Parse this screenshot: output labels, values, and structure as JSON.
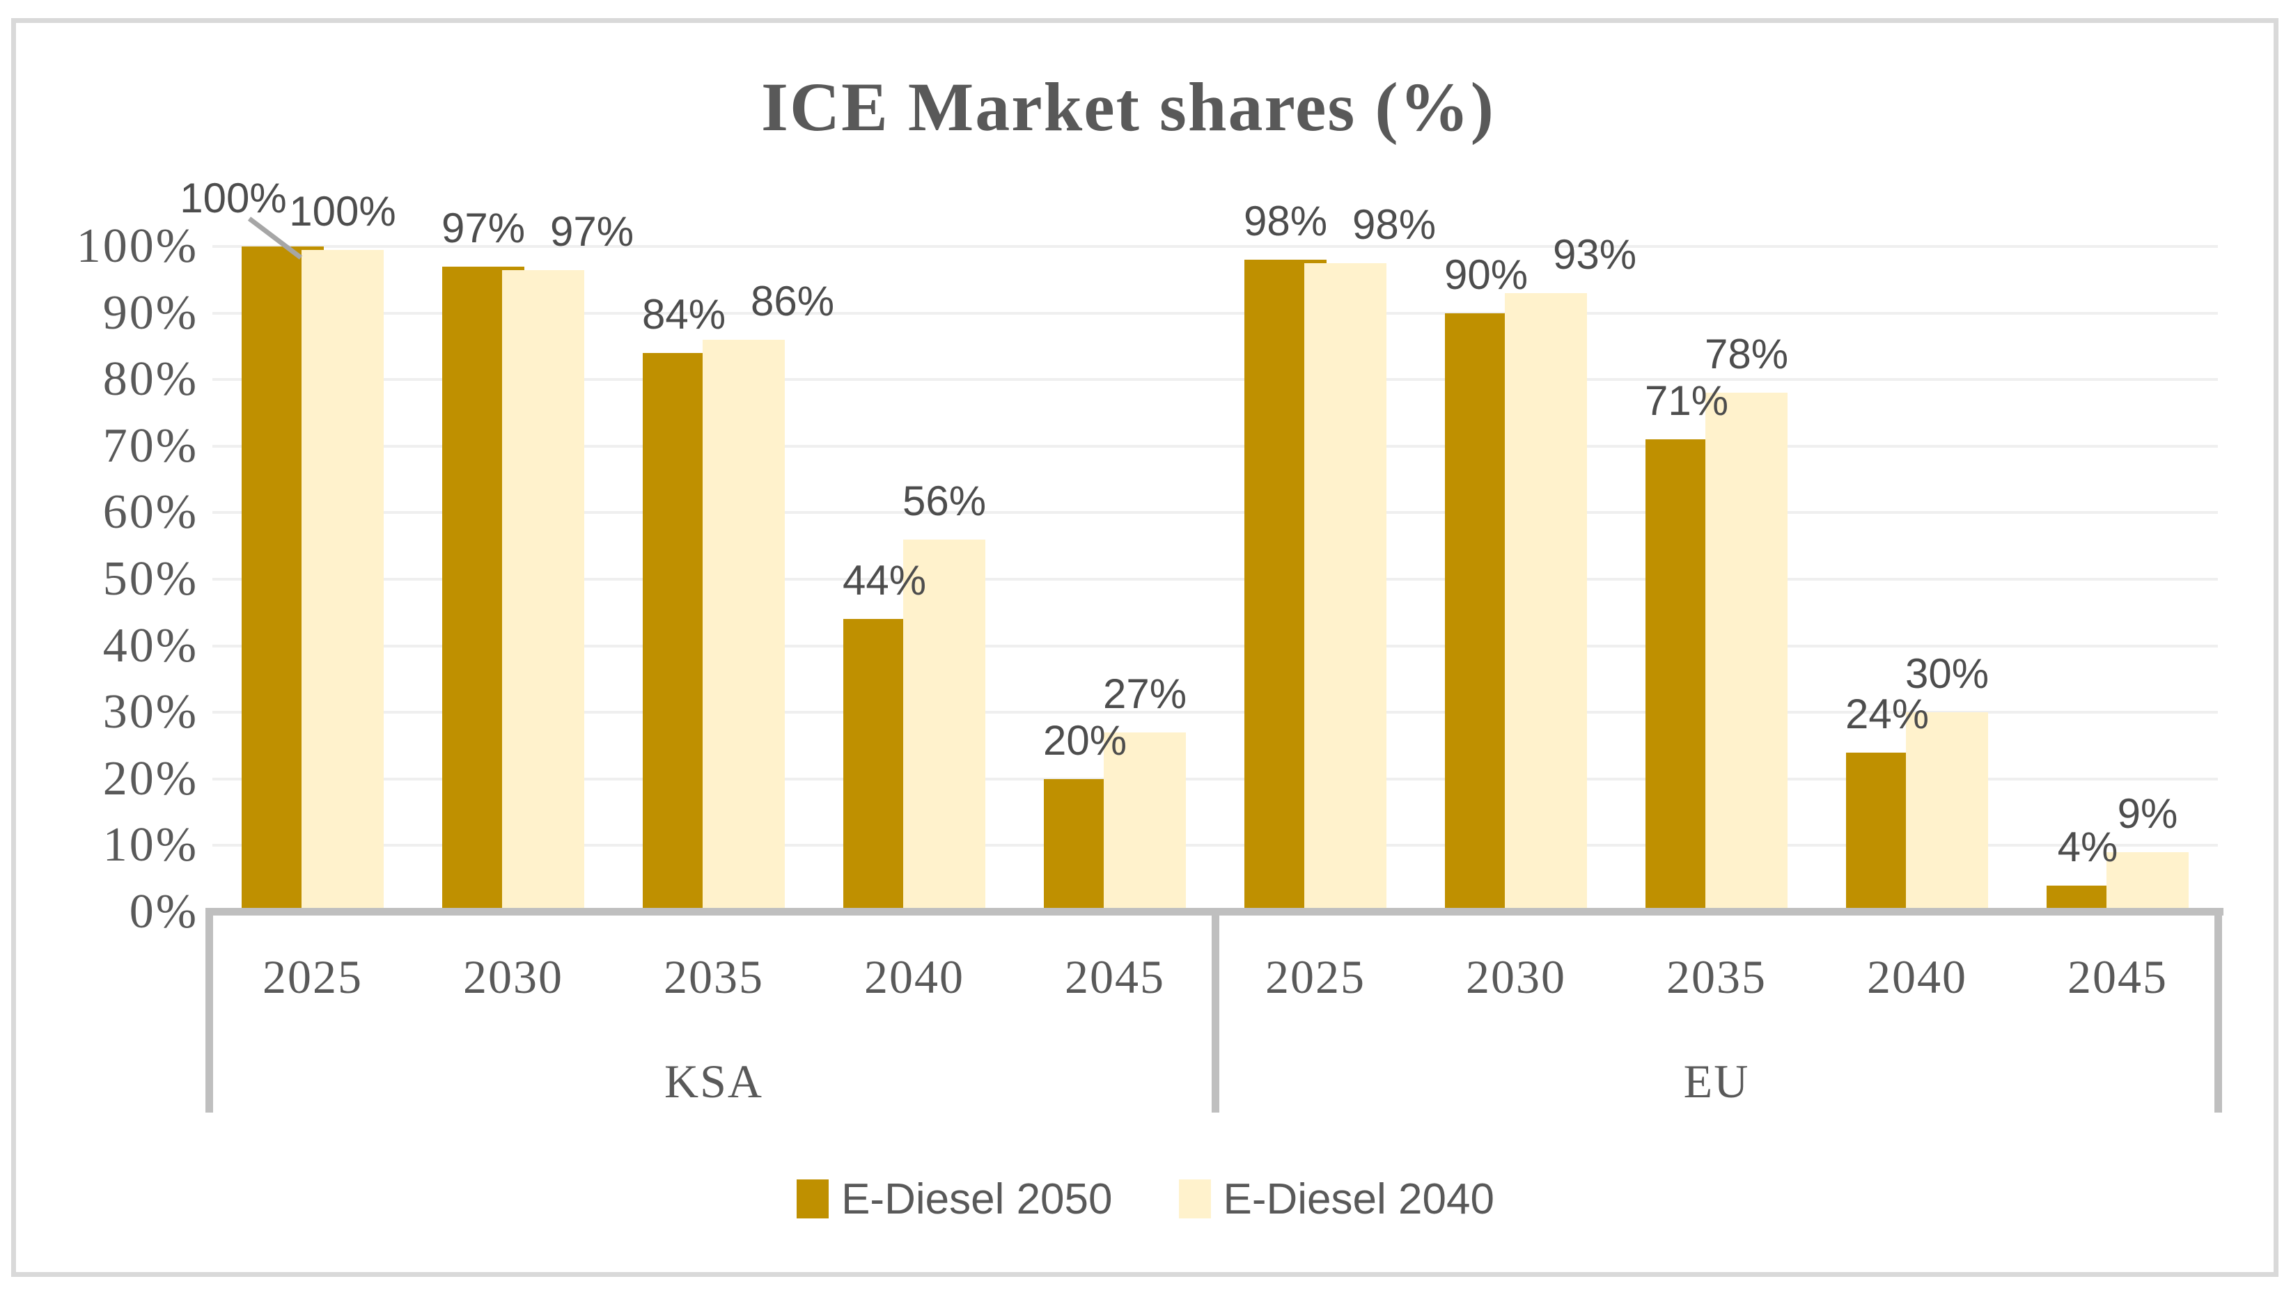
{
  "title": "ICE Market shares (%)",
  "legend": {
    "items": [
      {
        "label": "E-Diesel 2050",
        "color": "#BF9000"
      },
      {
        "label": "E-Diesel 2040",
        "color": "#FFF2CC"
      }
    ]
  },
  "chart_data": {
    "type": "bar",
    "title": "ICE Market shares (%)",
    "groups": [
      "KSA",
      "EU"
    ],
    "categories": [
      "2025",
      "2030",
      "2035",
      "2040",
      "2045"
    ],
    "series": [
      {
        "name": "E-Diesel 2050",
        "color": "#BF9000",
        "values": {
          "KSA": [
            100,
            97,
            84,
            44,
            20
          ],
          "EU": [
            98,
            90,
            71,
            24,
            4
          ]
        }
      },
      {
        "name": "E-Diesel 2040",
        "color": "#FFF2CC",
        "values": {
          "KSA": [
            100,
            97,
            86,
            56,
            27
          ],
          "EU": [
            98,
            93,
            78,
            30,
            9
          ]
        }
      }
    ],
    "data_labels": "outside_end_percent",
    "label_callout": {
      "group": "KSA",
      "category": "2025",
      "series": "E-Diesel 2050"
    },
    "y_axis": {
      "min": 0,
      "max": 100,
      "step": 10,
      "tick_labels": [
        "0%",
        "10%",
        "20%",
        "30%",
        "40%",
        "50%",
        "60%",
        "70%",
        "80%",
        "90%",
        "100%"
      ]
    },
    "gridlines": true,
    "legend_position": "bottom",
    "styles": {
      "title_color": "#595959",
      "axis_text_color": "#595959",
      "data_label_color": "#4d4d4d",
      "gridline_color": "#EFEFEF",
      "axis_line_color": "#BFBFBF",
      "leader_line_color": "#A6A6A6",
      "chart_border_color": "#D9D9D9"
    }
  }
}
